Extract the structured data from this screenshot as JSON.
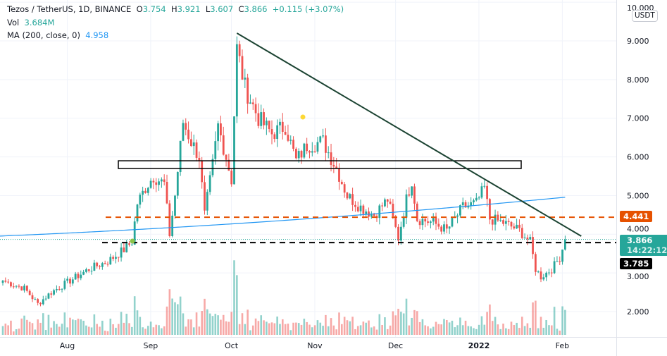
{
  "header": {
    "symbol": "Tezos / TetherUS, 1D, BINANCE",
    "open_label": "O",
    "open": "3.754",
    "high_label": "H",
    "high": "3.921",
    "low_label": "L",
    "low": "3.607",
    "close_label": "C",
    "close": "3.866",
    "change": "+0.115 (+3.07%)",
    "vol_label": "Vol",
    "vol": "3.684M",
    "ma_label": "MA (200, close, 0)",
    "ma": "4.958"
  },
  "price_axis": {
    "currency": "USDT",
    "top_label": "10.000",
    "current_price": "3.866",
    "countdown": "14:22:12",
    "orange_level": "4.441",
    "black_level": "3.785"
  },
  "colors": {
    "up": "#26a69a",
    "down": "#ef5350",
    "ma": "#2196f3",
    "trendline": "#1b4332",
    "orange": "#e65100",
    "black": "#000000"
  },
  "chart_data": {
    "type": "candlestick",
    "title": "Tezos / TetherUS, 1D, BINANCE",
    "ylim": [
      1.3,
      10.1
    ],
    "y_ticks": [
      "2.000",
      "3.000",
      "4.000",
      "5.000",
      "6.000",
      "7.000",
      "8.000",
      "9.000",
      "10.000"
    ],
    "x_ticks": [
      "Aug",
      "Sep",
      "Oct",
      "Nov",
      "Dec",
      "2022",
      "Feb"
    ],
    "x_tick_days": [
      25,
      56,
      86,
      117,
      147,
      178,
      209
    ],
    "close_waypoints_day_price": [
      [
        0,
        2.8
      ],
      [
        8,
        2.6
      ],
      [
        13,
        2.2
      ],
      [
        18,
        2.5
      ],
      [
        25,
        2.8
      ],
      [
        32,
        3.1
      ],
      [
        39,
        3.3
      ],
      [
        45,
        3.6
      ],
      [
        48,
        3.8
      ],
      [
        50,
        4.8
      ],
      [
        53,
        5.2
      ],
      [
        56,
        5.5
      ],
      [
        60,
        5.3
      ],
      [
        62,
        4.0
      ],
      [
        64,
        5.0
      ],
      [
        67,
        6.9
      ],
      [
        70,
        6.4
      ],
      [
        73,
        6.0
      ],
      [
        75,
        4.5
      ],
      [
        78,
        5.8
      ],
      [
        80,
        6.8
      ],
      [
        83,
        6.0
      ],
      [
        85,
        5.4
      ],
      [
        87,
        8.8
      ],
      [
        90,
        7.8
      ],
      [
        95,
        7.0
      ],
      [
        100,
        6.6
      ],
      [
        105,
        6.8
      ],
      [
        109,
        5.9
      ],
      [
        113,
        6.3
      ],
      [
        119,
        6.4
      ],
      [
        124,
        5.7
      ],
      [
        128,
        5.0
      ],
      [
        133,
        4.7
      ],
      [
        138,
        4.5
      ],
      [
        143,
        4.9
      ],
      [
        147,
        3.9
      ],
      [
        150,
        4.9
      ],
      [
        152,
        5.4
      ],
      [
        154,
        4.4
      ],
      [
        160,
        4.3
      ],
      [
        165,
        4.1
      ],
      [
        171,
        4.7
      ],
      [
        176,
        4.8
      ],
      [
        179,
        5.2
      ],
      [
        181,
        4.4
      ],
      [
        186,
        4.3
      ],
      [
        192,
        4.1
      ],
      [
        196,
        3.8
      ],
      [
        198,
        3.1
      ],
      [
        200,
        2.9
      ],
      [
        204,
        3.1
      ],
      [
        207,
        3.4
      ],
      [
        209,
        3.866
      ]
    ],
    "ma200_start": 3.95,
    "ma200_end": 4.958,
    "trendline": [
      [
        87,
        9.2
      ],
      [
        215,
        3.95
      ]
    ],
    "resistance_zone": [
      5.7,
      5.9
    ],
    "levels": [
      4.441,
      3.785
    ],
    "last_price": 3.866
  }
}
